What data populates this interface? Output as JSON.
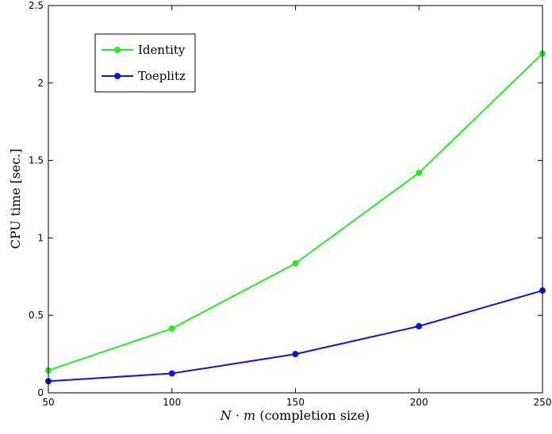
{
  "chart_data": {
    "type": "line",
    "xlabel": "N · m (completion size)",
    "xlabel_math": "N · m",
    "xlabel_text": " (completion size)",
    "ylabel": "CPU time [sec.]",
    "x": [
      50,
      100,
      150,
      200,
      250
    ],
    "xlim": [
      50,
      250
    ],
    "ylim": [
      0,
      2.5
    ],
    "xticks": [
      50,
      100,
      150,
      200,
      250
    ],
    "yticks": [
      0,
      0.5,
      1,
      1.5,
      2,
      2.5
    ],
    "ytick_labels": [
      "0",
      "0.5",
      "1",
      "1.5",
      "2",
      "2.5"
    ],
    "grid": false,
    "legend_position": "top-left",
    "series": [
      {
        "name": "Identity",
        "color": "#22ee22",
        "values": [
          0.145,
          0.415,
          0.835,
          1.42,
          2.19
        ]
      },
      {
        "name": "Toeplitz",
        "color": "#1111dd",
        "values": [
          0.075,
          0.125,
          0.25,
          0.43,
          0.66
        ]
      }
    ]
  }
}
